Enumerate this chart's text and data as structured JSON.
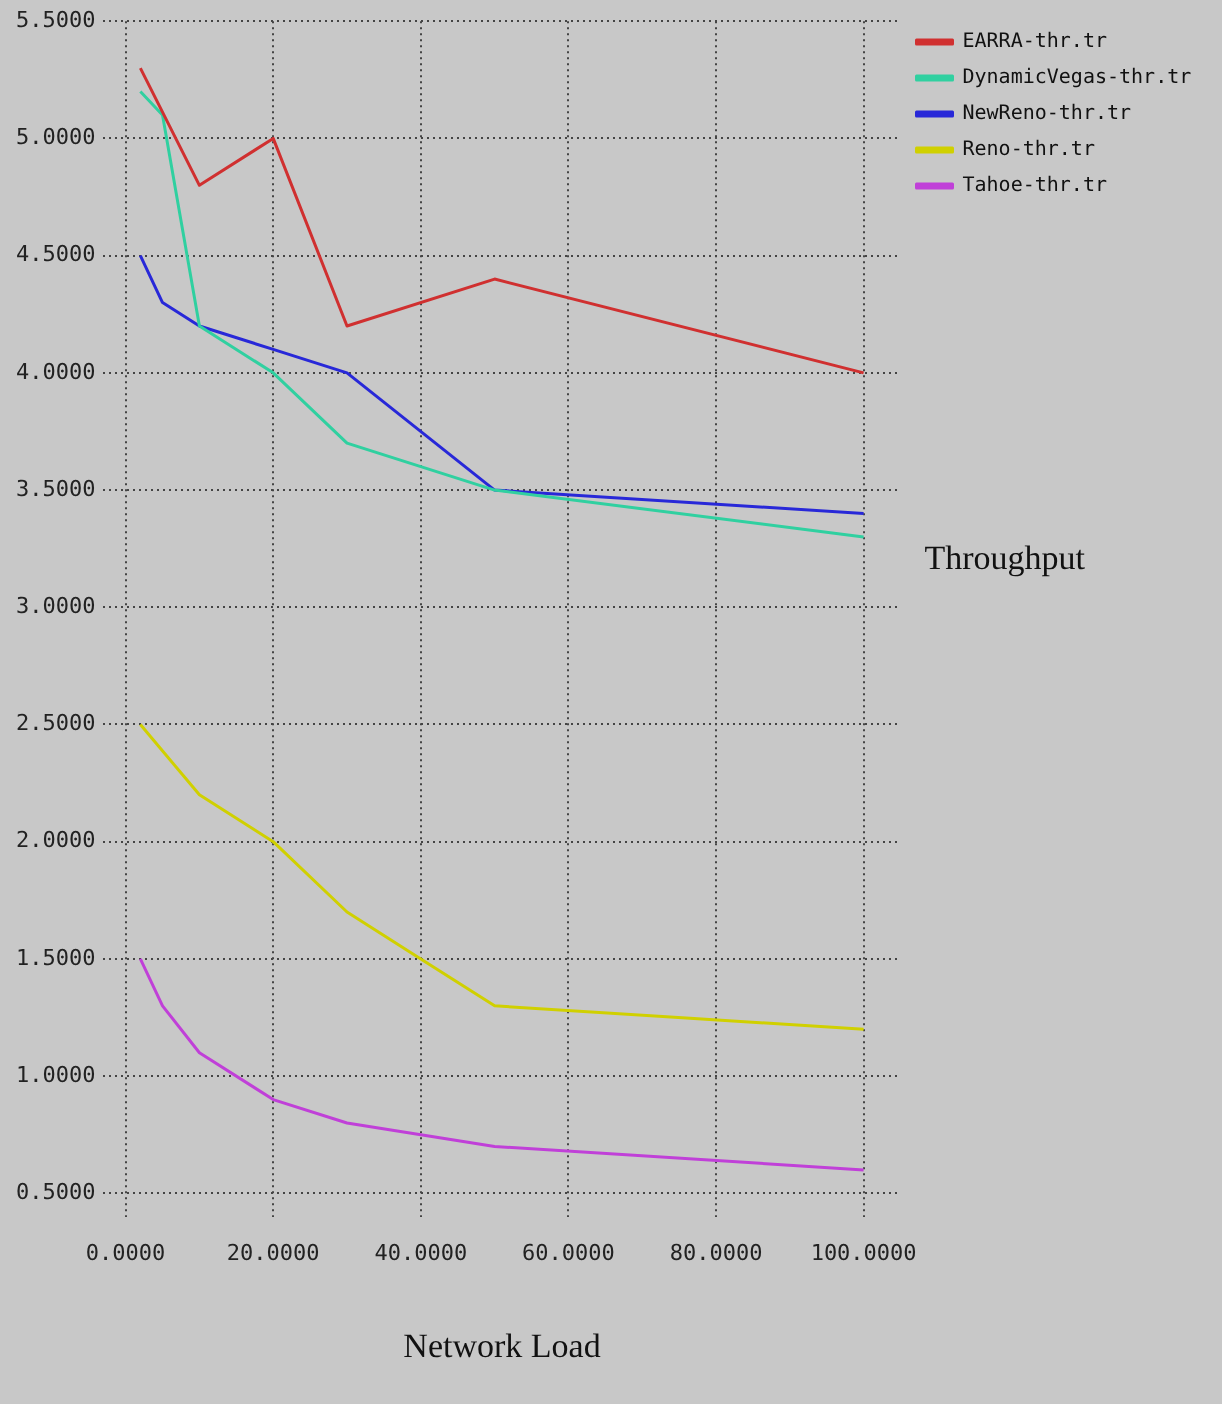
{
  "chart_data": {
    "type": "line",
    "xlabel": "Network Load",
    "ylabel": "Throughput",
    "xlim": [
      -3,
      105
    ],
    "ylim": [
      0.4,
      5.5
    ],
    "xticks": [
      {
        "value": 0,
        "label": "0.0000"
      },
      {
        "value": 20,
        "label": "20.0000"
      },
      {
        "value": 40,
        "label": "40.0000"
      },
      {
        "value": 60,
        "label": "60.0000"
      },
      {
        "value": 80,
        "label": "80.0000"
      },
      {
        "value": 100,
        "label": "100.0000"
      }
    ],
    "yticks": [
      {
        "value": 0.5,
        "label": "0.5000"
      },
      {
        "value": 1,
        "label": "1.0000"
      },
      {
        "value": 1.5,
        "label": "1.5000"
      },
      {
        "value": 2,
        "label": "2.0000"
      },
      {
        "value": 2.5,
        "label": "2.5000"
      },
      {
        "value": 3,
        "label": "3.0000"
      },
      {
        "value": 3.5,
        "label": "3.5000"
      },
      {
        "value": 4,
        "label": "4.0000"
      },
      {
        "value": 4.5,
        "label": "4.5000"
      },
      {
        "value": 5,
        "label": "5.0000"
      },
      {
        "value": 5.5,
        "label": "5.5000"
      }
    ],
    "grid": true,
    "legend": "top right",
    "marker": "none",
    "line_style": "solid",
    "series": [
      {
        "name": "EARRA-thr.tr",
        "color": "#d03030",
        "x": [
          2,
          10,
          20,
          30,
          50,
          100
        ],
        "values": [
          5.3,
          4.8,
          5.0,
          4.2,
          4.4,
          4.0
        ]
      },
      {
        "name": "DynamicVegas-thr.tr",
        "color": "#30d0a0",
        "x": [
          2,
          5,
          10,
          20,
          30,
          50,
          100
        ],
        "values": [
          5.2,
          5.1,
          4.2,
          4.0,
          3.7,
          3.5,
          3.3
        ]
      },
      {
        "name": "NewReno-thr.tr",
        "color": "#2828d8",
        "x": [
          2,
          5,
          10,
          20,
          30,
          50,
          100
        ],
        "values": [
          4.5,
          4.3,
          4.2,
          4.1,
          4.0,
          3.5,
          3.4
        ]
      },
      {
        "name": "Reno-thr.tr",
        "color": "#d0d000",
        "x": [
          2,
          10,
          20,
          30,
          40,
          50,
          100
        ],
        "values": [
          2.5,
          2.2,
          2.0,
          1.7,
          1.5,
          1.3,
          1.2
        ]
      },
      {
        "name": "Tahoe-thr.tr",
        "color": "#c040d8",
        "x": [
          2,
          5,
          10,
          20,
          30,
          50,
          100
        ],
        "values": [
          1.5,
          1.3,
          1.1,
          0.9,
          0.8,
          0.7,
          0.6
        ]
      }
    ]
  }
}
